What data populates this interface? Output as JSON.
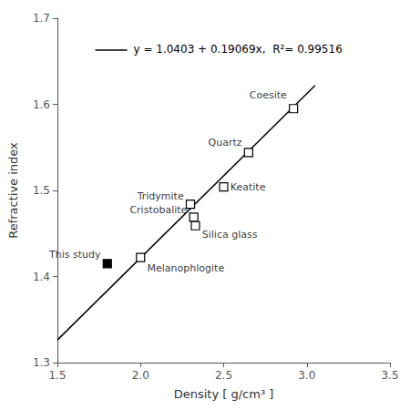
{
  "chart_data": {
    "type": "scatter",
    "title": "",
    "xlabel": "Density [ g/cm³ ]",
    "ylabel": "Refractive index",
    "xlim": [
      1.5,
      3.5
    ],
    "ylim": [
      1.3,
      1.7
    ],
    "xticks": [
      1.5,
      {
        "value": 2,
        "label": "2.0"
      },
      2.5,
      {
        "value": 3,
        "label": "3.0"
      },
      3.5
    ],
    "yticks": [
      1.3,
      1.4,
      1.5,
      1.6,
      1.7
    ],
    "grid": false,
    "series": [
      {
        "type": "line",
        "color": "#000000",
        "line_style": "solid",
        "x": [
          1.5,
          3.05
        ],
        "values": [
          1.326335,
          1.6219045
        ]
      },
      {
        "type": "scatter",
        "marker": "open_square",
        "color": "#000000",
        "x": [
          2.0,
          2.32,
          2.3,
          2.33,
          2.5,
          2.65,
          2.92
        ],
        "values": [
          1.422,
          1.469,
          1.484,
          1.459,
          1.504,
          1.544,
          1.595
        ]
      },
      {
        "type": "scatter",
        "marker": "filled_square",
        "color": "#000000",
        "x": [
          1.8
        ],
        "values": [
          1.415
        ]
      }
    ],
    "annotations": [
      {
        "text": "Melanophlogite",
        "x": 2.04,
        "y": 1.409
      },
      {
        "text": "Cristobalite",
        "x": 2.28,
        "y": 1.477
      },
      {
        "text": "Tridymite",
        "x": 2.26,
        "y": 1.493
      },
      {
        "text": "Silica glass",
        "x": 2.37,
        "y": 1.449
      },
      {
        "text": "Keatite",
        "x": 2.54,
        "y": 1.504
      },
      {
        "text": "Quartz",
        "x": 2.61,
        "y": 1.556
      },
      {
        "text": "Coesite",
        "x": 2.88,
        "y": 1.611
      },
      {
        "text": "This study",
        "x": 1.76,
        "y": 1.425
      },
      {
        "text": "y = 1.0403 + 0.19069x,  R²= 0.99516"
      }
    ]
  }
}
